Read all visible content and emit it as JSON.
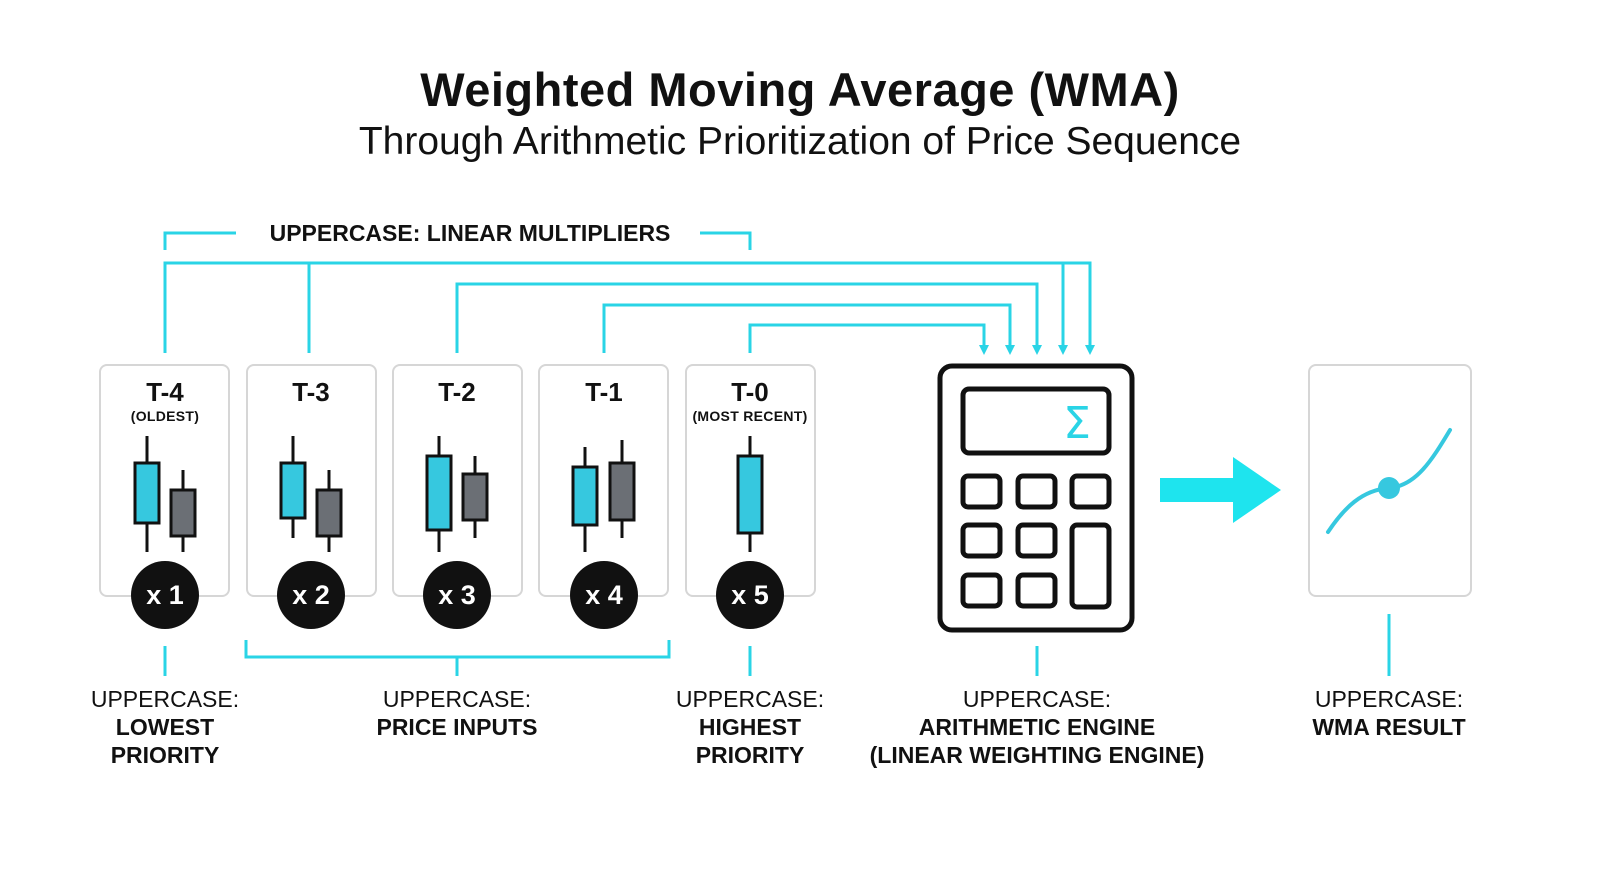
{
  "header": {
    "title": "Weighted Moving Average  (WMA)",
    "subtitle": "Through Arithmetic Prioritization of Price Sequence"
  },
  "multipliers_label": "UPPERCASE: LINEAR MULTIPLIERS",
  "periods": [
    {
      "label": "T-4",
      "sub": "(OLDEST)",
      "weight": "x 1"
    },
    {
      "label": "T-3",
      "sub": "",
      "weight": "x 2"
    },
    {
      "label": "T-2",
      "sub": "",
      "weight": "x 3"
    },
    {
      "label": "T-1",
      "sub": "",
      "weight": "x 4"
    },
    {
      "label": "T-0",
      "sub": "(MOST RECENT)",
      "weight": "x 5"
    }
  ],
  "calculator": {
    "display_symbol": "Σ"
  },
  "captions": {
    "lowest": {
      "pre": "UPPERCASE:",
      "main": "LOWEST\nPRIORITY"
    },
    "inputs": {
      "pre": "UPPERCASE:",
      "main": "PRICE INPUTS"
    },
    "highest": {
      "pre": "UPPERCASE:",
      "main": "HIGHEST\nPRIORITY"
    },
    "engine": {
      "pre": "UPPERCASE:",
      "main": "ARITHMETIC ENGINE\n(LINEAR WEIGHTING ENGINE)"
    },
    "result": {
      "pre": "UPPERCASE:",
      "main": "WMA RESULT"
    }
  },
  "colors": {
    "accent": "#2ad4e6",
    "candle_up": "#36c8df",
    "candle_down": "#6b6f75",
    "ink": "#111111",
    "card_border": "#d6d6d6"
  }
}
